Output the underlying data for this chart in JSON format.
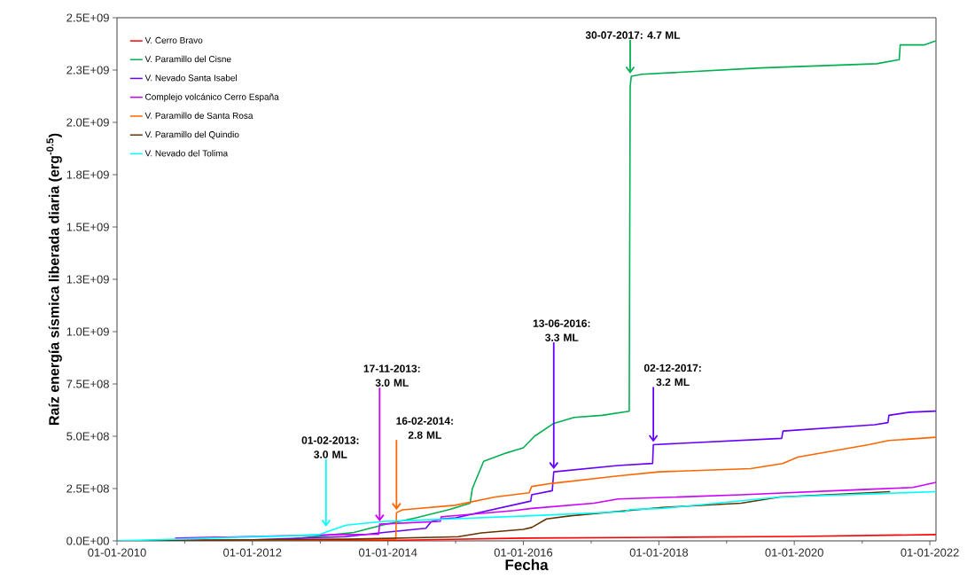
{
  "chart_data": {
    "type": "line",
    "xlabel": "Fecha",
    "ylabel": "**Raíz energía sísmica liberada diaria (erg$^{-0.5}$)**",
    "legend": "top left",
    "line_style": "solid",
    "xlim": [
      "2010-01-01",
      "2022-02-03"
    ],
    "ylim": [
      0,
      2500000000.0
    ],
    "xticks": [
      {
        "value": "2010-01-01",
        "label": "01-01-2010"
      },
      {
        "value": "2011-01-01",
        "label": null
      },
      {
        "value": "2012-01-01",
        "label": "01-01-2012"
      },
      {
        "value": "2013-01-01",
        "label": null
      },
      {
        "value": "2014-01-01",
        "label": "01-01-2014"
      },
      {
        "value": "2015-01-01",
        "label": null
      },
      {
        "value": "2016-01-01",
        "label": "01-01-2016"
      },
      {
        "value": "2017-01-01",
        "label": null
      },
      {
        "value": "2018-01-01",
        "label": "01-01-2018"
      },
      {
        "value": "2019-01-01",
        "label": null
      },
      {
        "value": "2020-01-01",
        "label": "01-01-2020"
      },
      {
        "value": "2021-01-01",
        "label": null
      },
      {
        "value": "2022-01-01",
        "label": "01-01-2022"
      }
    ],
    "yticks": [
      {
        "value": 0,
        "label": "0.0E+00"
      },
      {
        "value": 250000000.0,
        "label": "2.5E+08"
      },
      {
        "value": 500000000.0,
        "label": "5.0E+08"
      },
      {
        "value": 750000000.0,
        "label": "7.5E+08"
      },
      {
        "value": 1000000000.0,
        "label": "1.0E+09"
      },
      {
        "value": 1250000000.0,
        "label": "1.3E+09"
      },
      {
        "value": 1500000000.0,
        "label": "1.5E+09"
      },
      {
        "value": 1750000000.0,
        "label": "1.8E+09"
      },
      {
        "value": 2000000000.0,
        "label": "2.0E+09"
      },
      {
        "value": 2250000000.0,
        "label": "2.3E+09"
      },
      {
        "value": 2500000000.0,
        "label": "2.5E+09"
      }
    ],
    "series": [
      {
        "name": "V. Cerro Bravo",
        "color": "#ff0000",
        "x": [
          "2010-01-01",
          "2014-01-01",
          "2016-01-01",
          "2018-01-01",
          "2020-01-01",
          "2022-02-03"
        ],
        "values": [
          0,
          2000000.0,
          13000000.0,
          17000000.0,
          21000000.0,
          30000000.0
        ]
      },
      {
        "name": "V. Paramillo del Cisne",
        "color": "#00b050",
        "x": [
          "2010-01-01",
          "2012-06-01",
          "2013-03-15",
          "2013-07-01",
          "2013-12-01",
          "2014-06-01",
          "2014-12-01",
          "2015-03-20",
          "2015-04-01",
          "2015-06-01",
          "2015-10-01",
          "2016-01-01",
          "2016-03-01",
          "2016-06-10",
          "2016-10-01",
          "2017-03-01",
          "2017-07-25",
          "2017-07-30",
          "2017-08-05",
          "2017-10-01",
          "2019-07-01",
          "2021-03-20",
          "2021-07-20",
          "2021-07-25",
          "2021-12-01",
          "2022-02-03"
        ],
        "values": [
          0,
          3000000.0,
          30000000.0,
          40000000.0,
          75000000.0,
          110000000.0,
          150000000.0,
          180000000.0,
          250000000.0,
          380000000.0,
          420000000.0,
          445000000.0,
          500000000.0,
          560000000.0,
          590000000.0,
          600000000.0,
          620000000.0,
          2170000000.0,
          2220000000.0,
          2230000000.0,
          2260000000.0,
          2280000000.0,
          2300000000.0,
          2370000000.0,
          2370000000.0,
          2390000000.0
        ]
      },
      {
        "name": "V. Nevado Santa Isabel",
        "color": "#6600ff",
        "x": [
          "2010-01-01",
          "2012-01-01",
          "2013-05-15",
          "2013-12-10",
          "2014-07-25",
          "2014-08-20",
          "2014-10-15",
          "2015-01-01",
          "2016-02-10",
          "2016-02-15",
          "2016-06-05",
          "2016-06-13",
          "2017-05-25",
          "2017-11-28",
          "2017-12-02",
          "2019-10-25",
          "2019-11-01",
          "2021-03-10",
          "2021-05-20",
          "2021-05-25",
          "2021-09-15",
          "2022-02-03"
        ],
        "values": [
          0,
          5000000.0,
          20000000.0,
          40000000.0,
          60000000.0,
          90000000.0,
          105000000.0,
          110000000.0,
          190000000.0,
          220000000.0,
          240000000.0,
          330000000.0,
          360000000.0,
          370000000.0,
          460000000.0,
          490000000.0,
          525000000.0,
          555000000.0,
          565000000.0,
          600000000.0,
          615000000.0,
          620000000.0
        ]
      },
      {
        "name": "Complejo volcánico Cerro España",
        "color": "#cc00ff",
        "x": [
          "2010-11-10",
          "2013-04-15",
          "2013-11-12",
          "2013-11-17",
          "2014-10-10",
          "2014-10-15",
          "2015-11-15",
          "2016-02-15",
          "2017-01-15",
          "2017-05-25",
          "2019-03-20",
          "2021-01-01",
          "2021-10-01",
          "2022-02-03"
        ],
        "values": [
          13000000.0,
          30000000.0,
          32000000.0,
          80000000.0,
          93000000.0,
          115000000.0,
          145000000.0,
          155000000.0,
          180000000.0,
          200000000.0,
          220000000.0,
          245000000.0,
          255000000.0,
          280000000.0
        ]
      },
      {
        "name": "V. Paramillo de Santa Rosa",
        "color": "#ff6600",
        "x": [
          "2010-01-01",
          "2014-02-12",
          "2014-02-16",
          "2014-03-20",
          "2014-12-28",
          "2015-08-01",
          "2016-02-01",
          "2016-02-15",
          "2016-06-05",
          "2017-05-25",
          "2018-01-01",
          "2019-05-10",
          "2019-10-30",
          "2020-01-20",
          "2021-02-05",
          "2021-05-25",
          "2022-02-03"
        ],
        "values": [
          0,
          8000000.0,
          135000000.0,
          148000000.0,
          170000000.0,
          210000000.0,
          230000000.0,
          260000000.0,
          275000000.0,
          310000000.0,
          330000000.0,
          345000000.0,
          370000000.0,
          400000000.0,
          460000000.0,
          480000000.0,
          495000000.0
        ]
      },
      {
        "name": "V. Paramillo del Quindio",
        "color": "#663300",
        "x": [
          "2010-01-01",
          "2013-06-01",
          "2015-01-15",
          "2015-05-20",
          "2016-01-01",
          "2016-02-15",
          "2016-05-05",
          "2016-09-15",
          "2018-01-20",
          "2019-03-20",
          "2019-10-15",
          "2021-02-05",
          "2021-06-01"
        ],
        "values": [
          0,
          8000000.0,
          20000000.0,
          38000000.0,
          55000000.0,
          64000000.0,
          105000000.0,
          120000000.0,
          160000000.0,
          180000000.0,
          210000000.0,
          230000000.0,
          235000000.0
        ]
      },
      {
        "name": "V. Nevado del Tolima",
        "color": "#00ffff",
        "x": [
          "2010-01-01",
          "2012-08-15",
          "2012-12-25",
          "2013-03-15",
          "2013-05-20",
          "2013-12-10",
          "2014-05-20",
          "2016-02-15",
          "2017-07-01",
          "2017-08-01",
          "2018-01-20",
          "2019-10-15",
          "2021-03-10",
          "2022-02-03"
        ],
        "values": [
          0,
          25000000.0,
          30000000.0,
          55000000.0,
          75000000.0,
          93000000.0,
          98000000.0,
          120000000.0,
          140000000.0,
          150000000.0,
          155000000.0,
          210000000.0,
          225000000.0,
          235000000.0
        ]
      }
    ],
    "annotations": [
      {
        "text": "30-07-2017: 4.7 ML",
        "x": "2017-07-30",
        "y": 2220000000.0
      },
      {
        "text": "17-11-2013: 3.0 ML",
        "x": "2013-11-17",
        "y": 80000000.0
      },
      {
        "text": "01-02-2013: 3.0 ML",
        "x": "2013-02-01",
        "y": 55000000.0
      },
      {
        "text": "16-02-2014: 2.8 ML",
        "x": "2014-02-16",
        "y": 135000000.0
      },
      {
        "text": "13-06-2016: 3.3 ML",
        "x": "2016-06-13",
        "y": 330000000.0
      },
      {
        "text": "02-12-2017: 3.2 ML",
        "x": "2017-12-02",
        "y": 460000000.0
      }
    ]
  }
}
